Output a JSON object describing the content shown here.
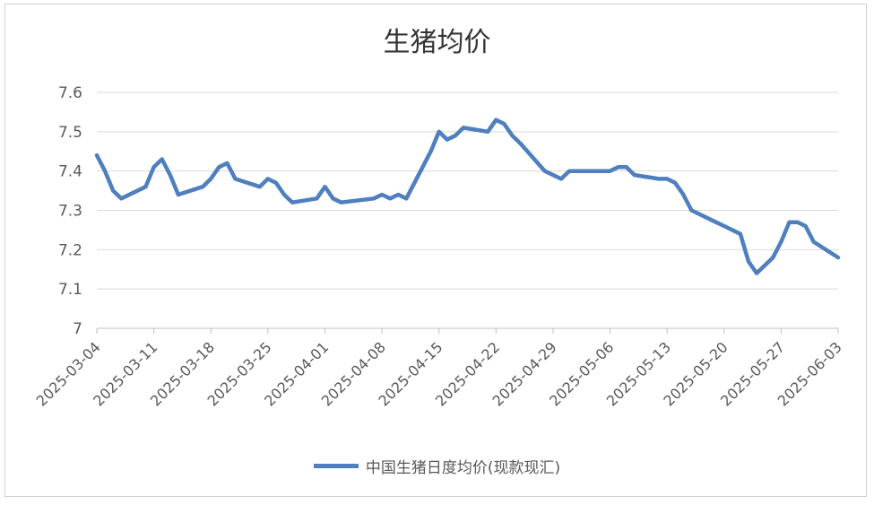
{
  "chart_data": {
    "type": "line",
    "title": "生猪均价",
    "xlabel": "",
    "ylabel": "",
    "ylim": [
      7,
      7.6
    ],
    "yticks": [
      "7",
      "7.1",
      "7.2",
      "7.3",
      "7.4",
      "7.5",
      "7.6"
    ],
    "xlim": [
      "2025-03-04",
      "2025-06-03"
    ],
    "xticks": [
      "2025-03-04",
      "2025-03-11",
      "2025-03-18",
      "2025-03-25",
      "2025-04-01",
      "2025-04-08",
      "2025-04-15",
      "2025-04-22",
      "2025-04-29",
      "2025-05-06",
      "2025-05-13",
      "2025-05-20",
      "2025-05-27",
      "2025-06-03"
    ],
    "grid": true,
    "legend_position": "bottom",
    "colors": {
      "series": "#4f7fbf",
      "grid": "#d9d9d9",
      "axis": "#bfbfbf",
      "text": "#595959"
    },
    "series": [
      {
        "name": "中国生猪日度均价(现款现汇)",
        "points": [
          [
            "2025-03-04",
            7.44
          ],
          [
            "2025-03-05",
            7.4
          ],
          [
            "2025-03-06",
            7.35
          ],
          [
            "2025-03-07",
            7.33
          ],
          [
            "2025-03-10",
            7.36
          ],
          [
            "2025-03-11",
            7.41
          ],
          [
            "2025-03-12",
            7.43
          ],
          [
            "2025-03-13",
            7.39
          ],
          [
            "2025-03-14",
            7.34
          ],
          [
            "2025-03-17",
            7.36
          ],
          [
            "2025-03-18",
            7.38
          ],
          [
            "2025-03-19",
            7.41
          ],
          [
            "2025-03-20",
            7.42
          ],
          [
            "2025-03-21",
            7.38
          ],
          [
            "2025-03-24",
            7.36
          ],
          [
            "2025-03-25",
            7.38
          ],
          [
            "2025-03-26",
            7.37
          ],
          [
            "2025-03-27",
            7.34
          ],
          [
            "2025-03-28",
            7.32
          ],
          [
            "2025-03-31",
            7.33
          ],
          [
            "2025-04-01",
            7.36
          ],
          [
            "2025-04-02",
            7.33
          ],
          [
            "2025-04-03",
            7.32
          ],
          [
            "2025-04-07",
            7.33
          ],
          [
            "2025-04-08",
            7.34
          ],
          [
            "2025-04-09",
            7.33
          ],
          [
            "2025-04-10",
            7.34
          ],
          [
            "2025-04-11",
            7.33
          ],
          [
            "2025-04-14",
            7.45
          ],
          [
            "2025-04-15",
            7.5
          ],
          [
            "2025-04-16",
            7.48
          ],
          [
            "2025-04-17",
            7.49
          ],
          [
            "2025-04-18",
            7.51
          ],
          [
            "2025-04-21",
            7.5
          ],
          [
            "2025-04-22",
            7.53
          ],
          [
            "2025-04-23",
            7.52
          ],
          [
            "2025-04-24",
            7.49
          ],
          [
            "2025-04-25",
            7.47
          ],
          [
            "2025-04-28",
            7.4
          ],
          [
            "2025-04-30",
            7.38
          ],
          [
            "2025-05-01",
            7.4
          ],
          [
            "2025-05-06",
            7.4
          ],
          [
            "2025-05-07",
            7.41
          ],
          [
            "2025-05-08",
            7.41
          ],
          [
            "2025-05-09",
            7.39
          ],
          [
            "2025-05-12",
            7.38
          ],
          [
            "2025-05-13",
            7.38
          ],
          [
            "2025-05-14",
            7.37
          ],
          [
            "2025-05-15",
            7.34
          ],
          [
            "2025-05-16",
            7.3
          ],
          [
            "2025-05-19",
            7.27
          ],
          [
            "2025-05-20",
            7.26
          ],
          [
            "2025-05-22",
            7.24
          ],
          [
            "2025-05-23",
            7.17
          ],
          [
            "2025-05-24",
            7.14
          ],
          [
            "2025-05-26",
            7.18
          ],
          [
            "2025-05-27",
            7.22
          ],
          [
            "2025-05-28",
            7.27
          ],
          [
            "2025-05-29",
            7.27
          ],
          [
            "2025-05-30",
            7.26
          ],
          [
            "2025-05-31",
            7.22
          ],
          [
            "2025-06-03",
            7.18
          ]
        ]
      }
    ]
  }
}
